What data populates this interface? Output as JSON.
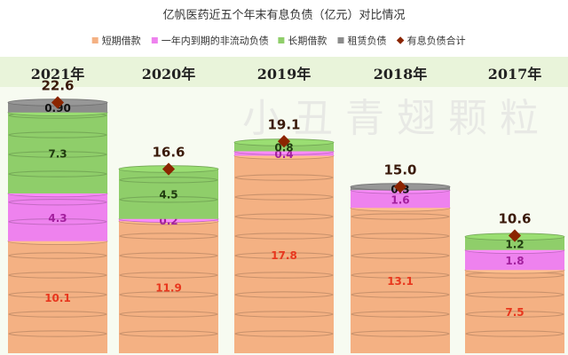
{
  "chart_data": {
    "type": "bar",
    "stacked": true,
    "title": "亿帆医药近五个年末有息负债（亿元）对比情况",
    "categories": [
      "2021年",
      "2020年",
      "2019年",
      "2018年",
      "2017年"
    ],
    "series": [
      {
        "name": "短期借款",
        "color": "#f4b183",
        "values": [
          10.1,
          11.9,
          17.8,
          13.1,
          7.5
        ]
      },
      {
        "name": "一年内到期的非流动负债",
        "color": "#ee82ee",
        "values": [
          4.3,
          0.2,
          0.4,
          1.6,
          1.8
        ]
      },
      {
        "name": "长期借款",
        "color": "#8fce6a",
        "values": [
          7.3,
          4.5,
          0.8,
          0.0,
          1.2
        ]
      },
      {
        "name": "租赁负债",
        "color": "#8c8c8c",
        "values": [
          0.9,
          0.0,
          0.0,
          0.3,
          0.0
        ]
      }
    ],
    "total": {
      "name": "有息负债合计",
      "color": "#8b2500",
      "values": [
        22.6,
        16.6,
        19.1,
        15.0,
        10.6
      ]
    },
    "data_labels": {
      "短期借款": [
        "10.1",
        "11.9",
        "17.8",
        "13.1",
        "7.5"
      ],
      "一年内到期的非流动负债": [
        "4.3",
        "0.2",
        "0.4",
        "1.6",
        "1.8"
      ],
      "长期借款": [
        "7.3",
        "4.5",
        "0.8",
        "",
        "1.2"
      ],
      "租赁负债": [
        "0.90",
        "",
        "",
        "0.3",
        ""
      ],
      "有息负债合计": [
        "22.6",
        "16.6",
        "19.1",
        "15.0",
        "10.6"
      ]
    },
    "ylim": [
      0,
      24
    ],
    "legend_position": "top",
    "grid": false
  },
  "watermark_text": "小 丑 青 翅 颗 粒"
}
